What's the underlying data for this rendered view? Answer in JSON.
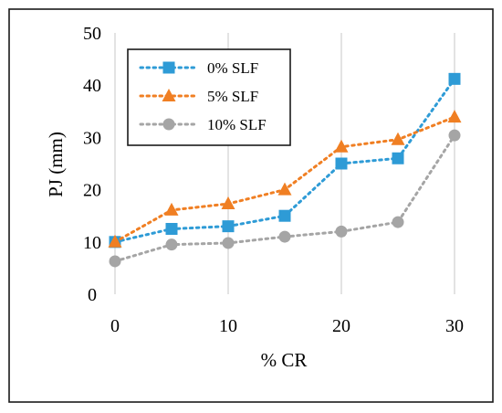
{
  "chart_data": {
    "type": "line",
    "xlabel": "% CR",
    "ylabel": "PJ (mm)",
    "xlim": [
      0,
      30
    ],
    "ylim": [
      0,
      50
    ],
    "xticks": [
      0,
      10,
      20,
      30
    ],
    "yticks": [
      0,
      10,
      20,
      30,
      40,
      50
    ],
    "grid": "vertical",
    "legend_position": "top-left",
    "x": [
      0,
      5,
      10,
      15,
      20,
      25,
      30
    ],
    "series": [
      {
        "name": "0% SLF",
        "color": "#2E9BD6",
        "marker": "square",
        "values": [
          10,
          12.5,
          13,
          15,
          25,
          26,
          41.2
        ]
      },
      {
        "name": "5% SLF",
        "color": "#F07F23",
        "marker": "triangle",
        "values": [
          10,
          16.1,
          17.3,
          20,
          28.2,
          29.6,
          33.9
        ]
      },
      {
        "name": "10% SLF",
        "color": "#A5A5A5",
        "marker": "circle",
        "values": [
          6.3,
          9.5,
          9.8,
          11,
          12,
          13.8,
          30.4
        ]
      }
    ]
  }
}
